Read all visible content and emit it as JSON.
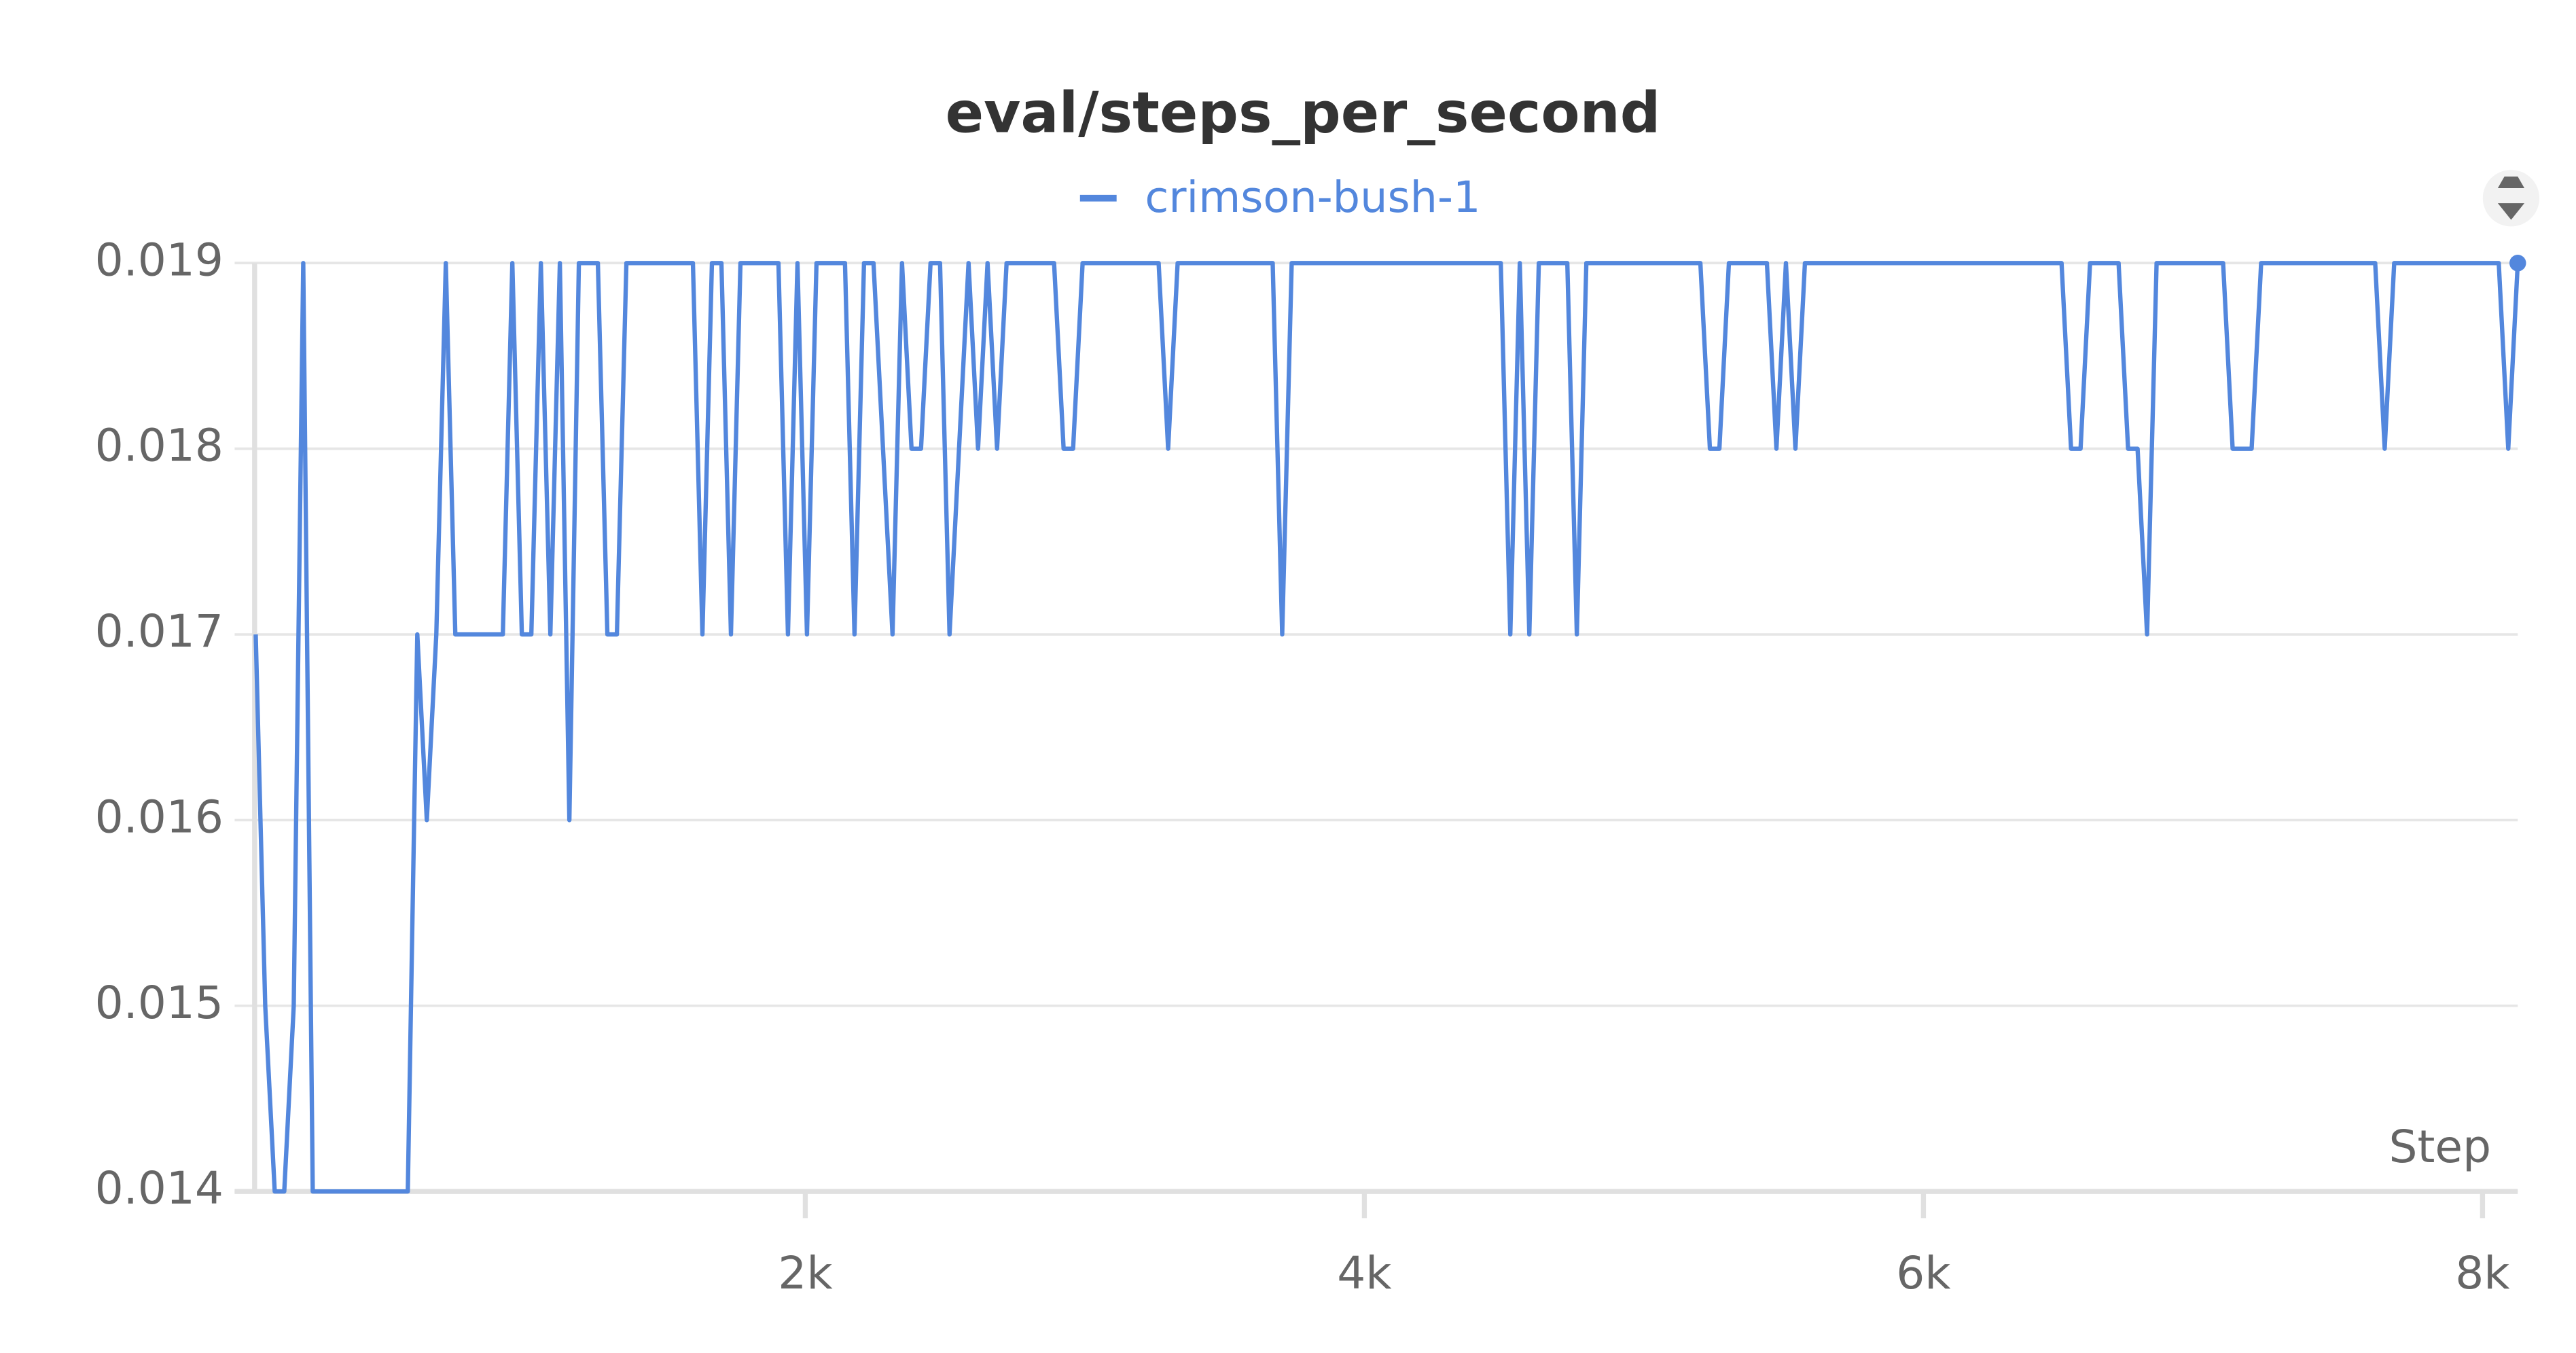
{
  "chart_data": {
    "type": "line",
    "title": "eval/steps_per_second",
    "x_label": "Step",
    "series": [
      {
        "name": "crimson-bush-1",
        "color": "#5387dd",
        "x": [
          34,
          68,
          102,
          136,
          170,
          204,
          238,
          272,
          306,
          340,
          374,
          408,
          442,
          476,
          510,
          544,
          578,
          612,
          646,
          680,
          714,
          748,
          782,
          816,
          850,
          884,
          918,
          952,
          986,
          1020,
          1054,
          1088,
          1122,
          1156,
          1190,
          1224,
          1258,
          1292,
          1326,
          1360,
          1394,
          1428,
          1462,
          1496,
          1530,
          1564,
          1598,
          1632,
          1666,
          1700,
          1734,
          1768,
          1802,
          1836,
          1870,
          1904,
          1938,
          1972,
          2006,
          2040,
          2074,
          2108,
          2142,
          2176,
          2210,
          2244,
          2278,
          2312,
          2346,
          2380,
          2414,
          2448,
          2482,
          2516,
          2550,
          2584,
          2618,
          2652,
          2686,
          2720,
          2754,
          2788,
          2822,
          2856,
          2890,
          2924,
          2958,
          2992,
          3026,
          3060,
          3094,
          3128,
          3162,
          3196,
          3230,
          3264,
          3298,
          3332,
          3366,
          3400,
          3434,
          3468,
          3502,
          3536,
          3570,
          3604,
          3638,
          3672,
          3706,
          3740,
          3774,
          3808,
          3842,
          3876,
          3910,
          3944,
          3978,
          4012,
          4046,
          4080,
          4114,
          4148,
          4182,
          4216,
          4250,
          4284,
          4318,
          4352,
          4386,
          4420,
          4454,
          4488,
          4522,
          4556,
          4590,
          4624,
          4658,
          4692,
          4726,
          4760,
          4794,
          4828,
          4862,
          4896,
          4930,
          4964,
          4998,
          5032,
          5066,
          5100,
          5134,
          5168,
          5202,
          5236,
          5270,
          5304,
          5338,
          5372,
          5406,
          5440,
          5474,
          5508,
          5542,
          5576,
          5610,
          5644,
          5678,
          5712,
          5746,
          5780,
          5814,
          5848,
          5882,
          5916,
          5950,
          5984,
          6018,
          6052,
          6086,
          6120,
          6154,
          6188,
          6222,
          6256,
          6290,
          6324,
          6358,
          6392,
          6426,
          6460,
          6494,
          6528,
          6562,
          6596,
          6630,
          6664,
          6698,
          6732,
          6766,
          6800,
          6834,
          6868,
          6902,
          6936,
          6970,
          7004,
          7038,
          7072,
          7106,
          7140,
          7174,
          7208,
          7242,
          7276,
          7310,
          7344,
          7378,
          7412,
          7446,
          7480,
          7514,
          7548,
          7582,
          7616,
          7650,
          7684,
          7718,
          7752,
          7786,
          7820,
          7854,
          7888,
          7922,
          7956,
          7990,
          8024,
          8058,
          8092,
          8126
        ],
        "values": [
          0.017,
          0.015,
          0.014,
          0.014,
          0.015,
          0.019,
          0.014,
          0.014,
          0.014,
          0.014,
          0.014,
          0.014,
          0.014,
          0.014,
          0.014,
          0.014,
          0.014,
          0.017,
          0.016,
          0.017,
          0.019,
          0.017,
          0.017,
          0.017,
          0.017,
          0.017,
          0.017,
          0.019,
          0.017,
          0.017,
          0.019,
          0.017,
          0.019,
          0.016,
          0.019,
          0.019,
          0.019,
          0.017,
          0.017,
          0.019,
          0.019,
          0.019,
          0.019,
          0.019,
          0.019,
          0.019,
          0.019,
          0.017,
          0.019,
          0.019,
          0.017,
          0.019,
          0.019,
          0.019,
          0.019,
          0.019,
          0.017,
          0.019,
          0.017,
          0.019,
          0.019,
          0.019,
          0.019,
          0.017,
          0.019,
          0.019,
          0.018,
          0.017,
          0.019,
          0.018,
          0.018,
          0.019,
          0.019,
          0.017,
          0.018,
          0.019,
          0.018,
          0.019,
          0.018,
          0.019,
          0.019,
          0.019,
          0.019,
          0.019,
          0.019,
          0.018,
          0.018,
          0.019,
          0.019,
          0.019,
          0.019,
          0.019,
          0.019,
          0.019,
          0.019,
          0.019,
          0.018,
          0.019,
          0.019,
          0.019,
          0.019,
          0.019,
          0.019,
          0.019,
          0.019,
          0.019,
          0.019,
          0.019,
          0.017,
          0.019,
          0.019,
          0.019,
          0.019,
          0.019,
          0.019,
          0.019,
          0.019,
          0.019,
          0.019,
          0.019,
          0.019,
          0.019,
          0.019,
          0.019,
          0.019,
          0.019,
          0.019,
          0.019,
          0.019,
          0.019,
          0.019,
          0.019,
          0.017,
          0.019,
          0.017,
          0.019,
          0.019,
          0.019,
          0.019,
          0.017,
          0.019,
          0.019,
          0.019,
          0.019,
          0.019,
          0.019,
          0.019,
          0.019,
          0.019,
          0.019,
          0.019,
          0.019,
          0.019,
          0.018,
          0.018,
          0.019,
          0.019,
          0.019,
          0.019,
          0.019,
          0.018,
          0.019,
          0.018,
          0.019,
          0.019,
          0.019,
          0.019,
          0.019,
          0.019,
          0.019,
          0.019,
          0.019,
          0.019,
          0.019,
          0.019,
          0.019,
          0.019,
          0.019,
          0.019,
          0.019,
          0.019,
          0.019,
          0.019,
          0.019,
          0.019,
          0.019,
          0.019,
          0.019,
          0.019,
          0.019,
          0.019,
          0.018,
          0.018,
          0.019,
          0.019,
          0.019,
          0.019,
          0.018,
          0.018,
          0.017,
          0.019,
          0.019,
          0.019,
          0.019,
          0.019,
          0.019,
          0.019,
          0.019,
          0.018,
          0.018,
          0.018,
          0.019,
          0.019,
          0.019,
          0.019,
          0.019,
          0.019,
          0.019,
          0.019,
          0.019,
          0.019,
          0.019,
          0.019,
          0.019,
          0.018,
          0.019,
          0.019,
          0.019,
          0.019,
          0.019,
          0.019,
          0.019,
          0.019,
          0.019,
          0.019,
          0.019,
          0.019,
          0.018,
          0.019
        ]
      }
    ],
    "xlim": [
      30,
      8126
    ],
    "xticks": [
      {
        "value": 2000,
        "label": "2k"
      },
      {
        "value": 4000,
        "label": "4k"
      },
      {
        "value": 6000,
        "label": "6k"
      },
      {
        "value": 8000,
        "label": "8k"
      }
    ],
    "ylim": [
      0.014,
      0.019
    ],
    "yticks": [
      0.014,
      0.015,
      0.016,
      0.017,
      0.018,
      0.019
    ],
    "grid": true
  }
}
